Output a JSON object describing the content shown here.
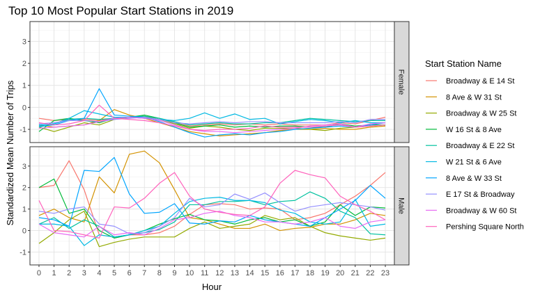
{
  "chart_data": {
    "type": "line",
    "title": "Top 10 Most Popular Start Stations in 2019",
    "xlabel": "Hour",
    "ylabel": "Standardized Mean Number of Trips",
    "legend_title": "Start Station Name",
    "legend_position": "right",
    "grid": true,
    "x": [
      0,
      1,
      2,
      3,
      4,
      5,
      6,
      7,
      8,
      9,
      10,
      11,
      12,
      13,
      14,
      15,
      16,
      17,
      18,
      19,
      20,
      21,
      22,
      23
    ],
    "xlim": [
      -0.6,
      23.6
    ],
    "ylim": [
      -1.6,
      3.9
    ],
    "yticks": [
      -1,
      0,
      1,
      2,
      3
    ],
    "facets": [
      {
        "label": "Female",
        "series": [
          {
            "name": "Broadway & E 14 St",
            "color": "#F8766D",
            "values": [
              -0.5,
              -0.6,
              -0.55,
              -0.55,
              -0.6,
              -0.5,
              -0.45,
              -0.45,
              -0.55,
              -0.7,
              -0.85,
              -0.8,
              -0.75,
              -0.8,
              -0.75,
              -0.8,
              -0.75,
              -0.8,
              -0.8,
              -0.8,
              -0.7,
              -0.75,
              -0.6,
              -0.45
            ]
          },
          {
            "name": "8 Ave & W 31 St",
            "color": "#D39200",
            "values": [
              -0.8,
              -0.9,
              -0.85,
              -0.8,
              -0.6,
              -0.1,
              -0.35,
              -0.5,
              -0.7,
              -0.9,
              -1.1,
              -1.2,
              -1.3,
              -1.25,
              -1.2,
              -1.15,
              -1.05,
              -1.0,
              -1.0,
              -0.95,
              -1.0,
              -1.0,
              -0.9,
              -0.85
            ]
          },
          {
            "name": "Broadway & W 25 St",
            "color": "#93AA00",
            "values": [
              -0.9,
              -1.1,
              -0.9,
              -0.7,
              -0.8,
              -0.55,
              -0.45,
              -0.4,
              -0.55,
              -0.75,
              -0.95,
              -0.85,
              -0.9,
              -1.0,
              -1.05,
              -0.95,
              -0.95,
              -0.95,
              -1.0,
              -1.05,
              -0.95,
              -0.9,
              -0.85,
              -0.8
            ]
          },
          {
            "name": "W 16 St & 8 Ave",
            "color": "#00BA38",
            "values": [
              -1.1,
              -0.6,
              -0.5,
              -0.6,
              -0.7,
              -0.5,
              -0.45,
              -0.35,
              -0.5,
              -0.7,
              -0.9,
              -0.85,
              -0.8,
              -0.9,
              -0.85,
              -0.9,
              -0.85,
              -0.85,
              -0.9,
              -0.9,
              -0.75,
              -0.85,
              -0.8,
              -0.8
            ]
          },
          {
            "name": "Broadway & E 22 St",
            "color": "#00C19F",
            "values": [
              -0.9,
              -0.75,
              -0.55,
              -0.5,
              -0.55,
              -0.5,
              -0.45,
              -0.4,
              -0.5,
              -0.65,
              -0.8,
              -0.75,
              -0.7,
              -0.75,
              -0.75,
              -0.7,
              -0.7,
              -0.6,
              -0.5,
              -0.55,
              -0.6,
              -0.65,
              -0.6,
              -0.6
            ]
          },
          {
            "name": "W 21 St & 6 Ave",
            "color": "#00B9E3",
            "values": [
              -0.8,
              -0.75,
              -0.5,
              -0.15,
              -0.3,
              -0.45,
              -0.45,
              -0.5,
              -0.55,
              -0.6,
              -0.5,
              -0.25,
              -0.5,
              -0.3,
              -0.55,
              -0.5,
              -0.75,
              -0.65,
              -0.55,
              -0.6,
              -0.7,
              -0.6,
              -0.7,
              -0.7
            ]
          },
          {
            "name": "8 Ave & W 33 St",
            "color": "#00A5FF",
            "values": [
              -0.85,
              -0.8,
              -0.6,
              -0.5,
              0.85,
              -0.35,
              -0.4,
              -0.45,
              -0.65,
              -0.9,
              -1.15,
              -1.35,
              -1.25,
              -1.2,
              -1.25,
              -1.15,
              -1.1,
              -1.0,
              -0.95,
              -0.9,
              -0.85,
              -0.9,
              -0.8,
              -0.7
            ]
          },
          {
            "name": "E 17 St & Broadway",
            "color": "#9590FF",
            "values": [
              -0.75,
              -0.7,
              -0.6,
              -0.6,
              -0.65,
              -0.55,
              -0.5,
              -0.45,
              -0.55,
              -0.7,
              -0.75,
              -0.7,
              -0.65,
              -0.7,
              -0.65,
              -0.65,
              -0.7,
              -0.7,
              -0.7,
              -0.7,
              -0.65,
              -0.7,
              -0.55,
              -0.55
            ]
          },
          {
            "name": "Broadway & W 60 St",
            "color": "#E76BF3",
            "values": [
              -0.95,
              -0.9,
              -0.85,
              -0.8,
              -0.65,
              -0.5,
              -0.45,
              -0.5,
              -0.6,
              -0.8,
              -1.0,
              -1.1,
              -1.1,
              -1.15,
              -1.1,
              -1.05,
              -1.0,
              -0.95,
              -0.85,
              -0.8,
              -0.75,
              -0.9,
              -0.75,
              -0.7
            ]
          },
          {
            "name": "Pershing Square North",
            "color": "#FF62BC",
            "values": [
              -0.7,
              -0.8,
              -0.75,
              -0.6,
              0.1,
              -0.5,
              -0.55,
              -0.6,
              -0.7,
              -0.85,
              -1.0,
              -1.05,
              -1.0,
              -1.0,
              -0.95,
              -0.85,
              -0.9,
              -0.9,
              -0.9,
              -0.85,
              -0.8,
              -0.9,
              -0.85,
              -0.8
            ]
          }
        ]
      },
      {
        "label": "Male",
        "series": [
          {
            "name": "Broadway & E 14 St",
            "color": "#F8766D",
            "values": [
              2.0,
              2.1,
              3.25,
              1.9,
              -0.2,
              -0.3,
              -0.2,
              -0.2,
              -0.1,
              0.2,
              0.75,
              1.2,
              1.25,
              1.2,
              1.0,
              1.05,
              1.0,
              0.5,
              0.6,
              0.8,
              1.2,
              1.6,
              2.1,
              2.7
            ]
          },
          {
            "name": "8 Ave & W 31 St",
            "color": "#D39200",
            "values": [
              0.7,
              1.0,
              0.6,
              0.4,
              2.5,
              1.75,
              3.55,
              3.7,
              3.15,
              1.9,
              0.6,
              0.5,
              0.3,
              0.1,
              0.1,
              0.3,
              0.0,
              0.1,
              0.15,
              0.3,
              0.3,
              0.5,
              0.8,
              0.7
            ]
          },
          {
            "name": "Broadway & W 25 St",
            "color": "#93AA00",
            "values": [
              -0.6,
              -0.1,
              0.5,
              0.9,
              -0.75,
              -0.55,
              -0.4,
              -0.3,
              -0.3,
              -0.3,
              0.1,
              0.4,
              0.1,
              0.2,
              0.3,
              0.7,
              0.5,
              0.6,
              0.2,
              -0.1,
              -0.25,
              -0.35,
              -0.45,
              -0.35
            ]
          },
          {
            "name": "W 16 St & 8 Ave",
            "color": "#00BA38",
            "values": [
              2.0,
              2.4,
              0.8,
              1.0,
              0.0,
              -0.35,
              -0.2,
              0.0,
              0.3,
              0.55,
              0.75,
              0.5,
              0.45,
              0.3,
              0.5,
              0.6,
              0.4,
              0.5,
              0.2,
              0.4,
              1.2,
              0.7,
              1.1,
              1.05
            ]
          },
          {
            "name": "Broadway & E 22 St",
            "color": "#00C19F",
            "values": [
              0.3,
              0.6,
              0.1,
              0.5,
              0.2,
              -0.3,
              -0.2,
              -0.1,
              0.05,
              0.4,
              1.2,
              1.2,
              1.35,
              1.35,
              1.4,
              1.2,
              1.35,
              1.4,
              1.8,
              1.5,
              0.9,
              0.6,
              -0.15,
              -0.2
            ]
          },
          {
            "name": "W 21 St & 6 Ave",
            "color": "#00B9E3",
            "values": [
              0.3,
              0.3,
              0.2,
              -0.7,
              -0.2,
              -0.3,
              -0.2,
              0.0,
              0.2,
              0.8,
              1.35,
              1.5,
              1.55,
              1.4,
              1.4,
              1.3,
              0.95,
              0.8,
              0.4,
              0.3,
              0.4,
              1.45,
              0.2,
              0.3
            ]
          },
          {
            "name": "8 Ave & W 33 St",
            "color": "#00A5FF",
            "values": [
              0.6,
              0.5,
              0.2,
              2.8,
              2.75,
              3.4,
              1.7,
              0.8,
              0.85,
              1.25,
              0.35,
              0.3,
              0.45,
              0.4,
              0.7,
              0.5,
              0.4,
              0.3,
              0.2,
              0.6,
              1.0,
              1.4,
              2.1,
              1.5
            ]
          },
          {
            "name": "E 17 St & Broadway",
            "color": "#9590FF",
            "values": [
              0.9,
              0.8,
              1.0,
              1.1,
              0.3,
              0.2,
              -0.15,
              -0.1,
              0.2,
              0.6,
              1.5,
              1.1,
              1.2,
              1.7,
              1.45,
              1.75,
              1.3,
              0.9,
              1.1,
              1.2,
              1.3,
              1.2,
              1.1,
              0.95
            ]
          },
          {
            "name": "Broadway & W 60 St",
            "color": "#E76BF3",
            "values": [
              0.3,
              -0.1,
              -0.2,
              -0.3,
              0.2,
              -0.2,
              -0.1,
              -0.2,
              0.1,
              0.5,
              0.6,
              0.8,
              0.9,
              0.7,
              0.6,
              0.4,
              0.4,
              0.3,
              0.4,
              0.6,
              0.2,
              0.1,
              0.4,
              0.5
            ]
          },
          {
            "name": "Pershing Square North",
            "color": "#FF62BC",
            "values": [
              1.4,
              0.0,
              -0.05,
              -0.2,
              -0.35,
              1.1,
              1.05,
              1.5,
              2.2,
              2.7,
              1.6,
              1.0,
              0.85,
              0.75,
              0.7,
              1.1,
              2.2,
              2.8,
              2.6,
              2.45,
              1.6,
              1.2,
              0.9,
              0.5
            ]
          }
        ]
      }
    ]
  }
}
